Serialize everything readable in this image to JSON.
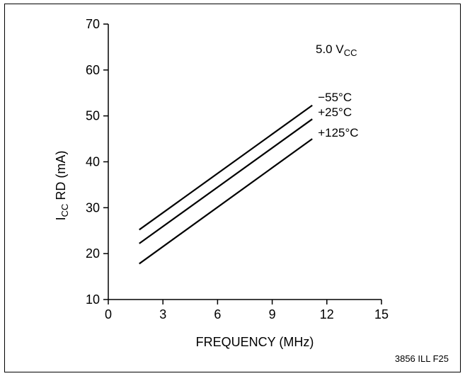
{
  "chart_data": {
    "type": "line",
    "xlabel": "FREQUENCY (MHz)",
    "ylabel_main": "I",
    "ylabel_sub": "CC",
    "ylabel_rest": " RD (mA)",
    "xlim": [
      0,
      15
    ],
    "ylim": [
      10,
      70
    ],
    "xticks": [
      0,
      3,
      6,
      9,
      12,
      15
    ],
    "yticks": [
      10,
      20,
      30,
      40,
      50,
      60,
      70
    ],
    "grid": false,
    "condition_main": "5.0 V",
    "condition_sub": "CC",
    "series": [
      {
        "name": "−55°C",
        "x": [
          1.7,
          11.2
        ],
        "y": [
          25.2,
          52.3
        ]
      },
      {
        "name": "+25°C",
        "x": [
          1.7,
          11.2
        ],
        "y": [
          22.2,
          49.3
        ]
      },
      {
        "name": "+125°C",
        "x": [
          1.7,
          11.2
        ],
        "y": [
          17.8,
          45.0
        ]
      }
    ],
    "figure_code": "3856 ILL F25"
  },
  "colors": {
    "line": "#000000",
    "background": "#ffffff"
  }
}
